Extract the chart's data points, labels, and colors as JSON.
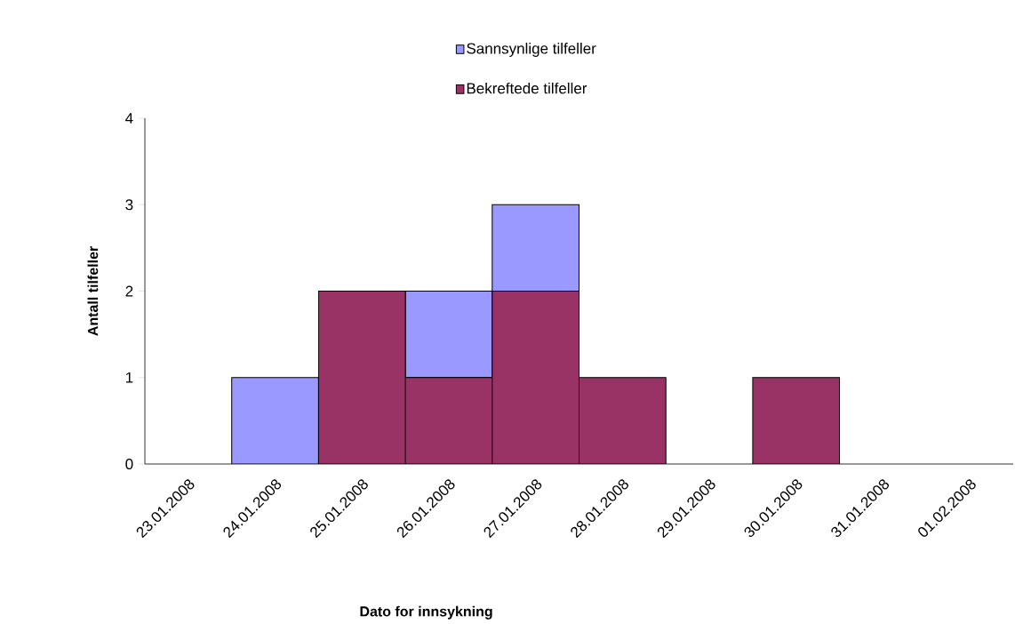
{
  "chart_data": {
    "type": "bar",
    "stacked": true,
    "xlabel": "Dato for innsykning",
    "ylabel": "Antall tilfeller",
    "categories": [
      "23.01.2008",
      "24.01.2008",
      "25.01.2008",
      "26.01.2008",
      "27.01.2008",
      "28.01.2008",
      "29.01.2008",
      "30.01.2008",
      "31.01.2008",
      "01.02.2008"
    ],
    "series": [
      {
        "name": "Bekreftede tilfeller",
        "color": "#993366",
        "values": [
          0,
          0,
          2,
          1,
          2,
          1,
          0,
          1,
          0,
          0
        ]
      },
      {
        "name": "Sannsynlige tilfeller",
        "color": "#9999ff",
        "values": [
          0,
          1,
          0,
          1,
          1,
          0,
          0,
          0,
          0,
          0
        ]
      }
    ],
    "ylim": [
      0,
      4
    ],
    "yticks": [
      0,
      1,
      2,
      3,
      4
    ],
    "grid": false,
    "legend": "top"
  }
}
